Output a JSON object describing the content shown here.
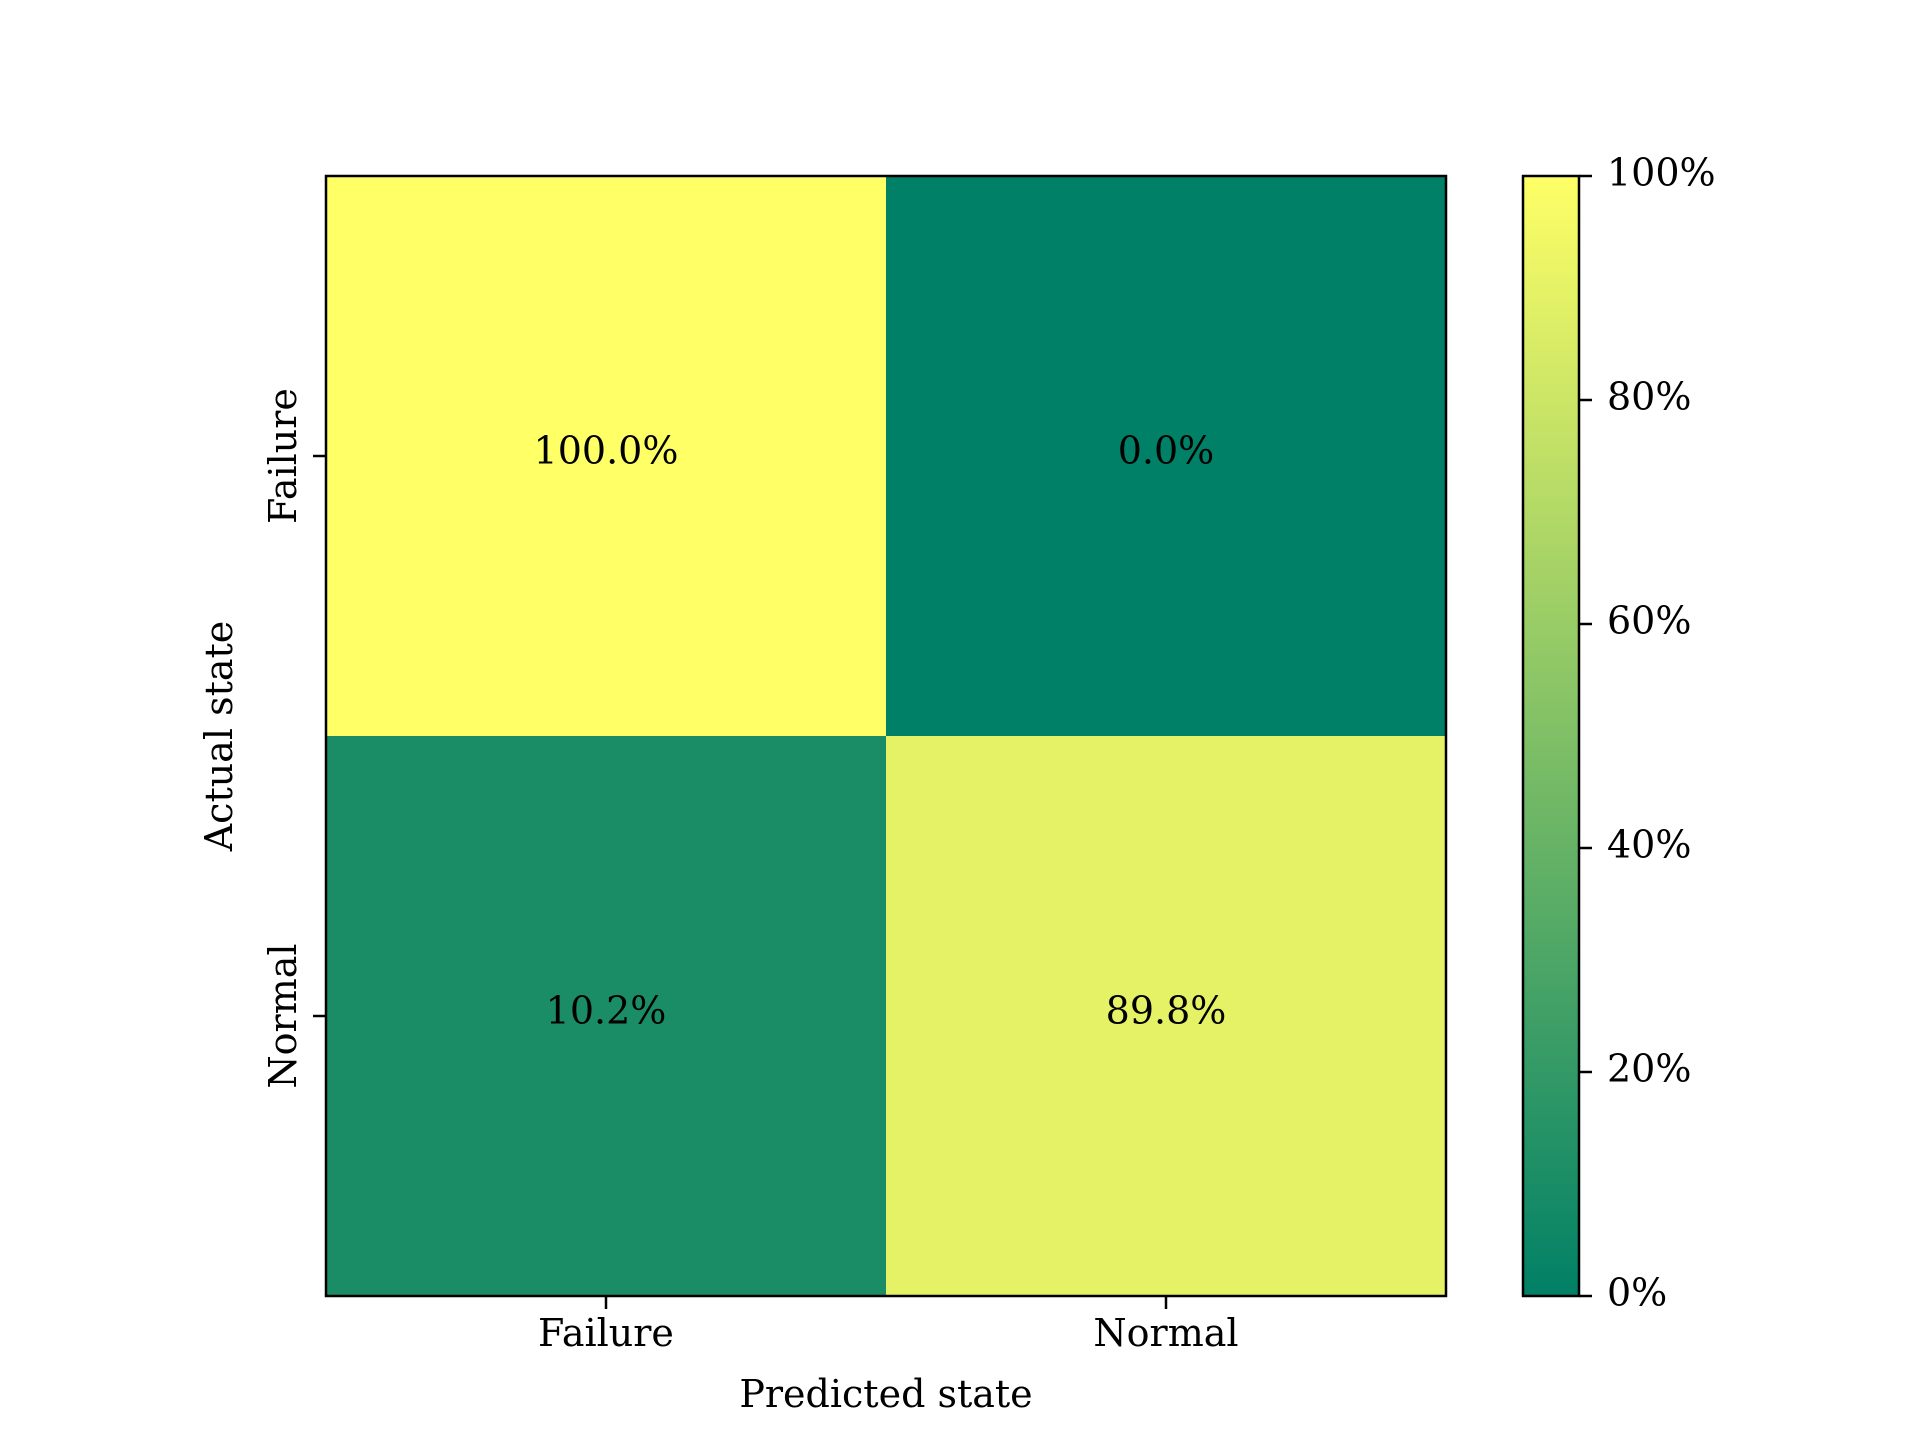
{
  "chart_data": {
    "type": "heatmap",
    "title": "",
    "xlabel": "Predicted state",
    "ylabel": "Actual state",
    "x_categories": [
      "Failure",
      "Normal"
    ],
    "y_categories": [
      "Failure",
      "Normal"
    ],
    "values": [
      [
        100.0,
        0.0
      ],
      [
        10.2,
        89.8
      ]
    ],
    "cell_labels": [
      [
        "100.0%",
        "0.0%"
      ],
      [
        "10.2%",
        "89.8%"
      ]
    ],
    "colormap": "summer",
    "colormap_endpoints": [
      "#008066",
      "#FFFF66"
    ],
    "colorbar": {
      "range": [
        0,
        100
      ],
      "ticks": [
        0,
        20,
        40,
        60,
        80,
        100
      ],
      "tick_labels": [
        "0%",
        "20%",
        "40%",
        "60%",
        "80%",
        "100%"
      ]
    },
    "grid": false,
    "legend": "colorbar-right"
  }
}
